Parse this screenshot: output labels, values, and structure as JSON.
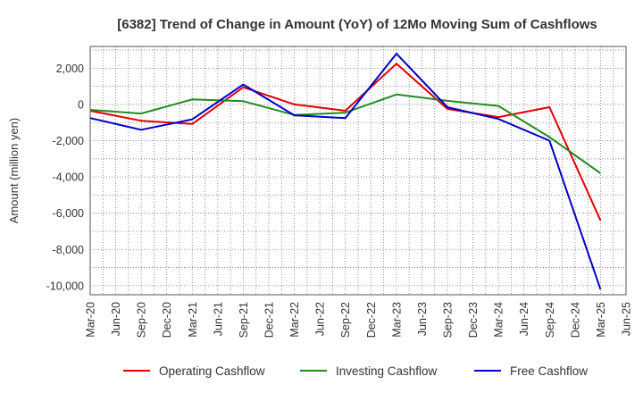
{
  "chart_data": {
    "type": "line",
    "title": "[6382]  Trend of Change in Amount (YoY) of 12Mo Moving Sum of Cashflows",
    "xlabel": "",
    "ylabel": "Amount (million yen)",
    "ylim": [
      -10500,
      3200
    ],
    "yticks": [
      2000,
      0,
      -2000,
      -4000,
      -6000,
      -8000,
      -10000
    ],
    "ytick_labels": [
      "2,000",
      "0",
      "-2,000",
      "-4,000",
      "-6,000",
      "-8,000",
      "-10,000"
    ],
    "categories": [
      "Mar-20",
      "Jun-20",
      "Sep-20",
      "Dec-20",
      "Mar-21",
      "Jun-21",
      "Sep-21",
      "Dec-21",
      "Mar-22",
      "Jun-22",
      "Sep-22",
      "Dec-22",
      "Mar-23",
      "Jun-23",
      "Sep-23",
      "Dec-23",
      "Mar-24",
      "Jun-24",
      "Sep-24",
      "Dec-24",
      "Mar-25",
      "Jun-25"
    ],
    "legend_position": "bottom",
    "grid": true,
    "series": [
      {
        "name": "Operating Cashflow",
        "color": "#e00000",
        "points": [
          [
            0,
            -350
          ],
          [
            2,
            -900
          ],
          [
            4,
            -1080
          ],
          [
            6,
            950
          ],
          [
            8,
            0
          ],
          [
            10,
            -350
          ],
          [
            12,
            2250
          ],
          [
            14,
            -250
          ],
          [
            16,
            -700
          ],
          [
            18,
            -150
          ],
          [
            20,
            -6400
          ]
        ]
      },
      {
        "name": "Investing Cashflow",
        "color": "#228b22",
        "points": [
          [
            0,
            -300
          ],
          [
            2,
            -500
          ],
          [
            4,
            280
          ],
          [
            6,
            180
          ],
          [
            8,
            -580
          ],
          [
            10,
            -450
          ],
          [
            12,
            550
          ],
          [
            14,
            200
          ],
          [
            16,
            -80
          ],
          [
            18,
            -1800
          ],
          [
            20,
            -3800
          ]
        ]
      },
      {
        "name": "Free Cashflow",
        "color": "#0000cc",
        "points": [
          [
            0,
            -750
          ],
          [
            2,
            -1400
          ],
          [
            4,
            -820
          ],
          [
            6,
            1100
          ],
          [
            8,
            -600
          ],
          [
            10,
            -750
          ],
          [
            12,
            2800
          ],
          [
            14,
            -150
          ],
          [
            16,
            -800
          ],
          [
            18,
            -2000
          ],
          [
            20,
            -10200
          ]
        ]
      }
    ]
  }
}
